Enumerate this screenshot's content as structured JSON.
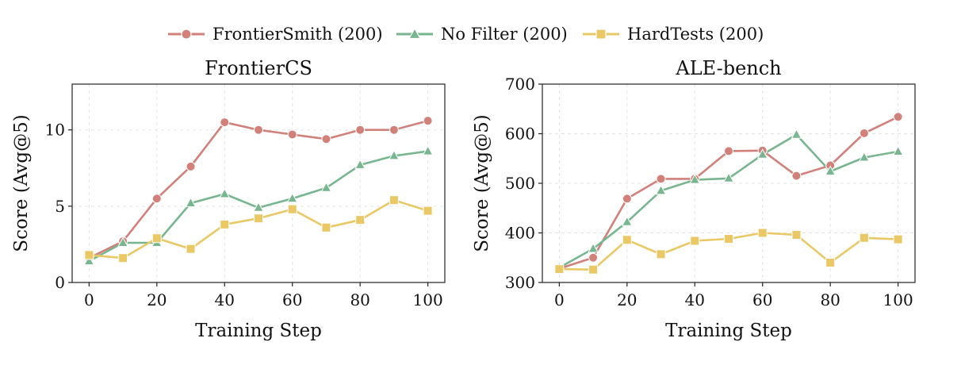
{
  "legend": {
    "items": [
      {
        "label": "FrontierSmith (200)",
        "color": "#D1817A",
        "marker": "circle"
      },
      {
        "label": "No Filter (200)",
        "color": "#77B68E",
        "marker": "triangle"
      },
      {
        "label": "HardTests (200)",
        "color": "#E9C865",
        "marker": "square"
      }
    ]
  },
  "chart_data": [
    {
      "type": "line",
      "title": "FrontierCS",
      "xlabel": "Training Step",
      "ylabel": "Score (Avg@5)",
      "x": [
        0,
        10,
        20,
        30,
        40,
        50,
        60,
        70,
        80,
        90,
        100
      ],
      "xlim": [
        -5,
        105
      ],
      "ylim": [
        0,
        13
      ],
      "xticks": [
        0,
        20,
        40,
        60,
        80,
        100
      ],
      "yticks": [
        0,
        5,
        10
      ],
      "grid": true,
      "series": [
        {
          "name": "FrontierSmith (200)",
          "color": "#D1817A",
          "marker": "circle",
          "values": [
            1.6,
            2.7,
            5.5,
            7.6,
            10.5,
            10.0,
            9.7,
            9.4,
            10.0,
            10.0,
            10.6
          ]
        },
        {
          "name": "No Filter (200)",
          "color": "#77B68E",
          "marker": "triangle",
          "values": [
            1.4,
            2.6,
            2.6,
            5.2,
            5.8,
            4.9,
            5.5,
            6.2,
            7.7,
            8.3,
            8.6
          ]
        },
        {
          "name": "HardTests (200)",
          "color": "#E9C865",
          "marker": "square",
          "values": [
            1.8,
            1.6,
            2.9,
            2.2,
            3.8,
            4.2,
            4.8,
            3.6,
            4.1,
            5.4,
            4.7
          ]
        }
      ]
    },
    {
      "type": "line",
      "title": "ALE-bench",
      "xlabel": "Training Step",
      "ylabel": "Score (Avg@5)",
      "x": [
        0,
        10,
        20,
        30,
        40,
        50,
        60,
        70,
        80,
        90,
        100
      ],
      "xlim": [
        -5,
        105
      ],
      "ylim": [
        300,
        700
      ],
      "xticks": [
        0,
        20,
        40,
        60,
        80,
        100
      ],
      "yticks": [
        300,
        400,
        500,
        600,
        700
      ],
      "grid": true,
      "series": [
        {
          "name": "FrontierSmith (200)",
          "color": "#D1817A",
          "marker": "circle",
          "values": [
            328,
            350,
            469,
            509,
            509,
            565,
            566,
            515,
            536,
            601,
            634
          ]
        },
        {
          "name": "No Filter (200)",
          "color": "#77B68E",
          "marker": "triangle",
          "values": [
            330,
            368,
            422,
            485,
            507,
            510,
            558,
            598,
            524,
            552,
            564
          ]
        },
        {
          "name": "HardTests (200)",
          "color": "#E9C865",
          "marker": "square",
          "values": [
            327,
            326,
            386,
            357,
            384,
            388,
            400,
            396,
            340,
            390,
            387
          ]
        }
      ]
    }
  ]
}
